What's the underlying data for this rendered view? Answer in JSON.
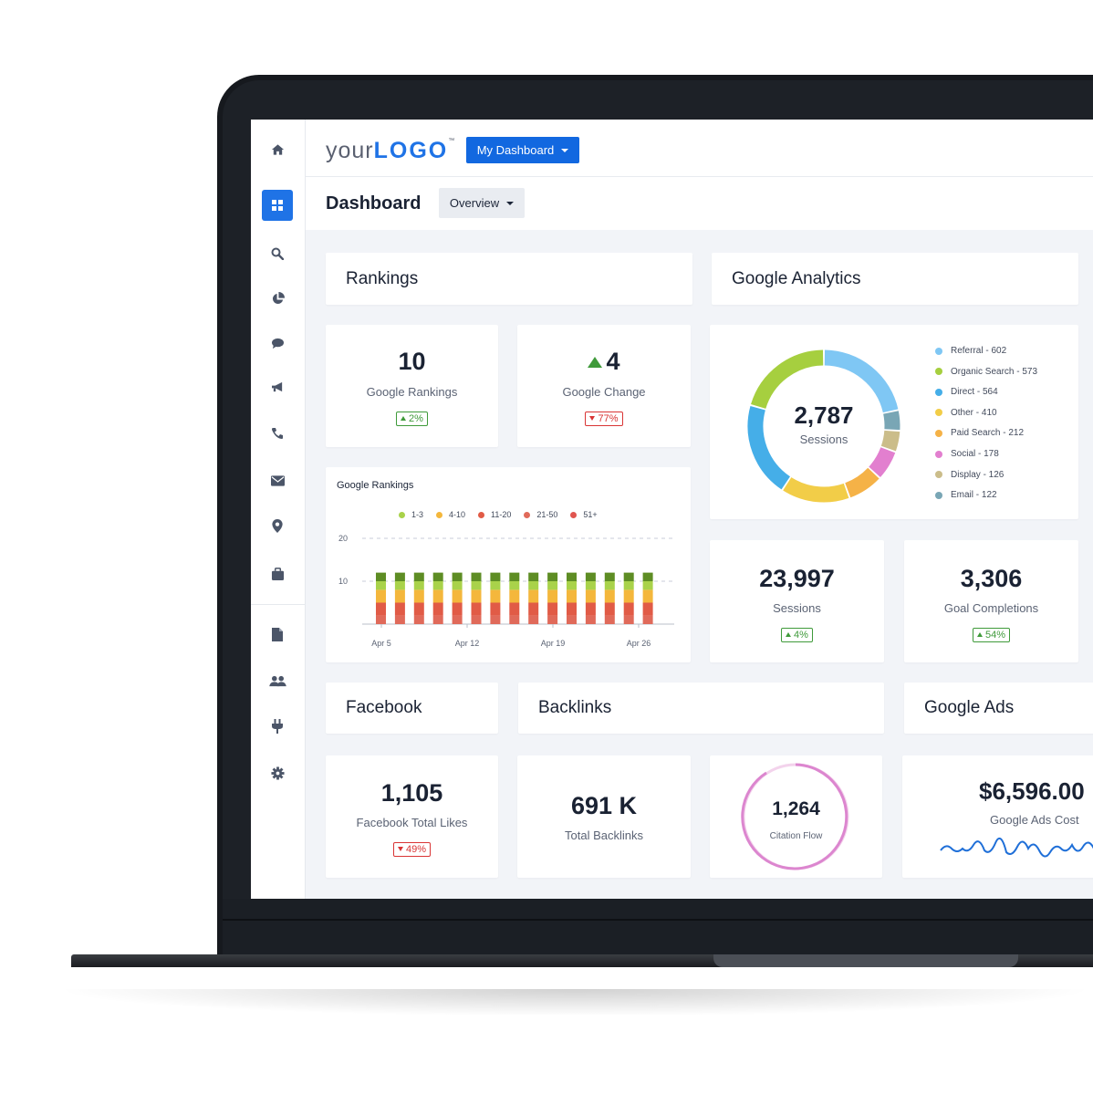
{
  "header": {
    "logo_prefix": "your",
    "logo_main": "LOGO",
    "logo_tm": "™",
    "dashboard_button": "My Dashboard"
  },
  "titlebar": {
    "title": "Dashboard",
    "overview_button": "Overview"
  },
  "sidebar": {
    "icons": [
      "home-icon",
      "grid-icon",
      "search-icon",
      "pie-chart-icon",
      "chat-icon",
      "megaphone-icon",
      "phone-icon",
      "mail-icon",
      "location-pin-icon",
      "briefcase-icon",
      "document-icon",
      "users-icon",
      "plug-icon",
      "gear-icon"
    ]
  },
  "sections": {
    "rankings": "Rankings",
    "google_analytics": "Google Analytics",
    "facebook": "Facebook",
    "backlinks": "Backlinks",
    "google_ads": "Google Ads"
  },
  "rankings": {
    "google_rankings": {
      "value": "10",
      "label": "Google Rankings",
      "badge": "2%",
      "trend": "up"
    },
    "google_change": {
      "value": "4",
      "label": "Google Change",
      "badge": "77%",
      "trend": "down"
    }
  },
  "analytics": {
    "total": "2,787",
    "total_label": "Sessions",
    "sessions": {
      "value": "23,997",
      "label": "Sessions",
      "badge": "4%"
    },
    "goals": {
      "value": "3,306",
      "label": "Goal Completions",
      "badge": "54%"
    }
  },
  "facebook": {
    "value": "1,105",
    "label": "Facebook Total Likes",
    "badge": "49%"
  },
  "backlinks": {
    "total": {
      "value": "691 K",
      "label": "Total Backlinks"
    },
    "citation": {
      "value": "1,264",
      "label": "Citation Flow"
    }
  },
  "ads": {
    "value": "$6,596.00",
    "label": "Google Ads Cost"
  },
  "colors": {
    "accent": "#1f73e6",
    "up": "#3f9a3a",
    "down": "#d93434"
  },
  "chart_data": [
    {
      "type": "pie",
      "title": "",
      "categories": [
        "Referral",
        "Organic Search",
        "Direct",
        "Other",
        "Paid Search",
        "Social",
        "Display",
        "Email"
      ],
      "values": [
        602,
        573,
        564,
        410,
        212,
        178,
        126,
        122
      ],
      "legend_labels": [
        "Referral - 602",
        "Organic Search - 573",
        "Direct - 564",
        "Other - 410",
        "Paid Search - 212",
        "Social - 178",
        "Display - 126",
        "Email - 122"
      ],
      "colors": [
        "#7fc7f4",
        "#a6cf3f",
        "#45aee8",
        "#f2cd48",
        "#f5b247",
        "#e27fcf",
        "#cbbd8a",
        "#79a6b5"
      ],
      "legend_placement": "right"
    },
    {
      "type": "bar",
      "title": "Google Rankings",
      "stacked": true,
      "x_ticks": [
        "Apr 5",
        "Apr 12",
        "Apr 19",
        "Apr 26"
      ],
      "y_ticks": [
        "20",
        "10"
      ],
      "ylim": [
        0,
        20
      ],
      "bar_count": 15,
      "series": [
        {
          "name": "1-3",
          "color": "#a9d24a",
          "values": [
            2,
            2,
            2,
            2,
            2,
            2,
            2,
            2,
            2,
            2,
            2,
            2,
            2,
            2,
            2
          ]
        },
        {
          "name": "4-10",
          "color": "#f4b73c",
          "values": [
            3,
            3,
            3,
            3,
            3,
            3,
            3,
            3,
            3,
            3,
            3,
            3,
            3,
            3,
            3
          ]
        },
        {
          "name": "11-20",
          "color": "#e15b46",
          "values": [
            3,
            3,
            3,
            3,
            3,
            3,
            3,
            3,
            3,
            3,
            3,
            3,
            3,
            3,
            3
          ]
        },
        {
          "name": "21-50",
          "color": "#e06a5a",
          "values": [
            2,
            2,
            2,
            2,
            2,
            2,
            2,
            2,
            2,
            2,
            2,
            2,
            2,
            2,
            2
          ]
        },
        {
          "name": "51+",
          "color": "#e0554f",
          "values": [
            0,
            0,
            0,
            0,
            0,
            0,
            0,
            0,
            0,
            0,
            0,
            0,
            0,
            0,
            0
          ]
        }
      ],
      "grid": true,
      "legend_placement": "top"
    }
  ]
}
